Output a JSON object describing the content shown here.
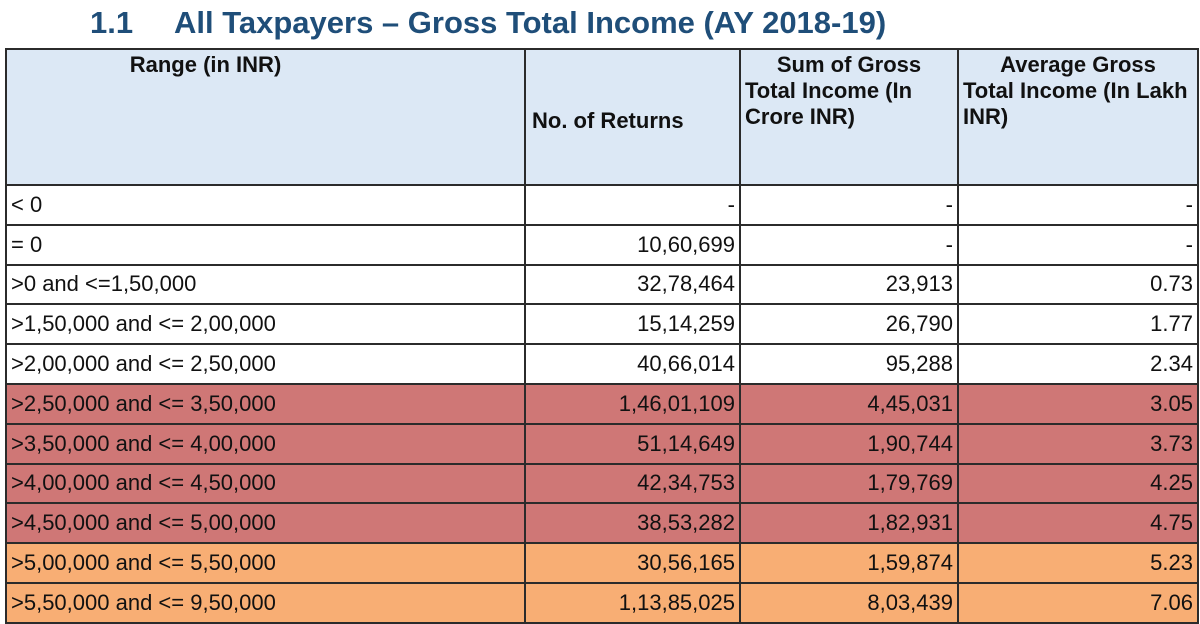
{
  "title": {
    "section": "1.1",
    "text": "All Taxpayers – Gross Total Income (AY 2018-19)"
  },
  "table": {
    "headers": {
      "range": "Range (in INR)",
      "returns": "No. of Returns",
      "sum_line1": "Sum of Gross",
      "sum_rest": "Total Income (In Crore INR)",
      "avg_line1": "Average Gross",
      "avg_rest": "Total Income (In Lakh INR)"
    },
    "rows": [
      {
        "range": "< 0",
        "returns": "-",
        "sum": "-",
        "avg": "-"
      },
      {
        "range": "= 0",
        "returns": "10,60,699",
        "sum": "-",
        "avg": "-"
      },
      {
        "range": ">0 and <=1,50,000",
        "returns": "32,78,464",
        "sum": "23,913",
        "avg": "0.73"
      },
      {
        "range": ">1,50,000 and <= 2,00,000",
        "returns": "15,14,259",
        "sum": "26,790",
        "avg": "1.77"
      },
      {
        "range": ">2,00,000 and <= 2,50,000",
        "returns": "40,66,014",
        "sum": "95,288",
        "avg": "2.34"
      },
      {
        "range": ">2,50,000 and <= 3,50,000",
        "returns": "1,46,01,109",
        "sum": "4,45,031",
        "avg": "3.05"
      },
      {
        "range": ">3,50,000 and <= 4,00,000",
        "returns": "51,14,649",
        "sum": "1,90,744",
        "avg": "3.73"
      },
      {
        "range": ">4,00,000 and <= 4,50,000",
        "returns": "42,34,753",
        "sum": "1,79,769",
        "avg": "4.25"
      },
      {
        "range": ">4,50,000 and <= 5,00,000",
        "returns": "38,53,282",
        "sum": "1,82,931",
        "avg": "4.75"
      },
      {
        "range": ">5,00,000 and <= 5,50,000",
        "returns": "30,56,165",
        "sum": "1,59,874",
        "avg": "5.23"
      },
      {
        "range": ">5,50,000 and <= 9,50,000",
        "returns": "1,13,85,025",
        "sum": "8,03,439",
        "avg": "7.06"
      }
    ]
  },
  "colors": {
    "title": "#1f4e79",
    "header_bg": "#dce8f5",
    "band_red": "#cf7776",
    "band_orange": "#f8ae74"
  }
}
